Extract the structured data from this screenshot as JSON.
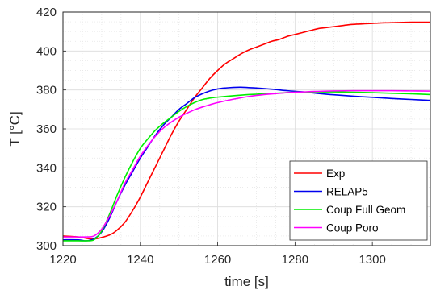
{
  "chart_data": {
    "type": "line",
    "title": "",
    "xlabel": "time [s]",
    "ylabel": "T [°C]",
    "xlim": [
      1220,
      1315
    ],
    "ylim": [
      300,
      420
    ],
    "xticks": [
      1220,
      1240,
      1260,
      1280,
      1300
    ],
    "xtick_labels": [
      "1220",
      "1240",
      "1260",
      "1280",
      "1300"
    ],
    "yticks": [
      300,
      320,
      340,
      360,
      380,
      400,
      420
    ],
    "ytick_labels": [
      "300",
      "320",
      "340",
      "360",
      "380",
      "400",
      "420"
    ],
    "grid": true,
    "legend_position": "bottom-right",
    "series": [
      {
        "name": "Exp",
        "color": "#ff0000",
        "x": [
          1220,
          1224,
          1228,
          1232,
          1234,
          1236,
          1238,
          1240,
          1242,
          1244,
          1246,
          1248,
          1250,
          1252,
          1254,
          1256,
          1258,
          1260,
          1262,
          1264,
          1266,
          1268,
          1270,
          1272,
          1274,
          1276,
          1278,
          1280,
          1282,
          1284,
          1286,
          1288,
          1290,
          1292,
          1294,
          1296,
          1298,
          1300,
          1302,
          1304,
          1306,
          1308,
          1310,
          1312,
          1315
        ],
        "y": [
          305,
          304.5,
          303.5,
          305.5,
          308,
          312,
          318,
          325,
          333,
          341,
          349,
          357,
          364,
          370,
          376,
          381,
          386,
          390,
          393.5,
          396,
          398.5,
          400.5,
          402,
          403.5,
          405,
          406,
          407.5,
          408.5,
          409.5,
          410.5,
          411.5,
          412,
          412.5,
          413,
          413.5,
          413.8,
          414,
          414.2,
          414.4,
          414.5,
          414.6,
          414.7,
          414.8,
          414.8,
          414.8
        ]
      },
      {
        "name": "RELAP5",
        "color": "#0000ee",
        "x": [
          1220,
          1224,
          1226,
          1228,
          1230,
          1232,
          1234,
          1236,
          1238,
          1240,
          1242,
          1244,
          1246,
          1248,
          1250,
          1252,
          1254,
          1256,
          1258,
          1260,
          1262,
          1264,
          1266,
          1268,
          1270,
          1274,
          1278,
          1282,
          1286,
          1290,
          1295,
          1300,
          1305,
          1310,
          1315
        ],
        "y": [
          303,
          303,
          302.5,
          303.5,
          307,
          314,
          323,
          331,
          338,
          345,
          351,
          357,
          362,
          366,
          370,
          373,
          376,
          378,
          379.5,
          380.5,
          381,
          381.3,
          381.4,
          381.2,
          381,
          380.4,
          379.6,
          379,
          378.2,
          377.5,
          376.8,
          376.2,
          375.6,
          375.1,
          374.6
        ]
      },
      {
        "name": "Coup Full Geom",
        "color": "#00ee00",
        "x": [
          1220,
          1224,
          1226,
          1228,
          1230,
          1232,
          1234,
          1236,
          1238,
          1240,
          1242,
          1244,
          1246,
          1248,
          1250,
          1252,
          1254,
          1256,
          1258,
          1260,
          1264,
          1268,
          1272,
          1276,
          1280,
          1285,
          1290,
          1295,
          1300,
          1305,
          1310,
          1315
        ],
        "y": [
          302.5,
          302.5,
          302.5,
          303,
          307.5,
          316,
          326,
          335,
          343,
          350,
          355,
          359.5,
          363,
          366,
          369,
          371.5,
          373.5,
          375,
          375.8,
          376.3,
          377,
          377.6,
          378,
          378.4,
          378.8,
          379,
          379,
          378.8,
          378.6,
          378.3,
          378,
          377.6
        ]
      },
      {
        "name": "Coup Poro",
        "color": "#ff00ff",
        "x": [
          1220,
          1224,
          1226,
          1228,
          1230,
          1232,
          1234,
          1236,
          1238,
          1240,
          1242,
          1244,
          1246,
          1248,
          1250,
          1252,
          1254,
          1256,
          1258,
          1260,
          1264,
          1268,
          1272,
          1276,
          1280,
          1285,
          1290,
          1295,
          1300,
          1305,
          1310,
          1315
        ],
        "y": [
          304.5,
          304.5,
          304.5,
          305,
          308.5,
          315,
          323,
          332,
          339,
          346,
          351.5,
          356.5,
          360.5,
          363.5,
          366,
          368,
          369.8,
          371.2,
          372.4,
          373.5,
          375.2,
          376.6,
          377.6,
          378.3,
          378.8,
          379.2,
          379.5,
          379.6,
          379.6,
          379.6,
          379.5,
          379.4
        ]
      }
    ]
  }
}
